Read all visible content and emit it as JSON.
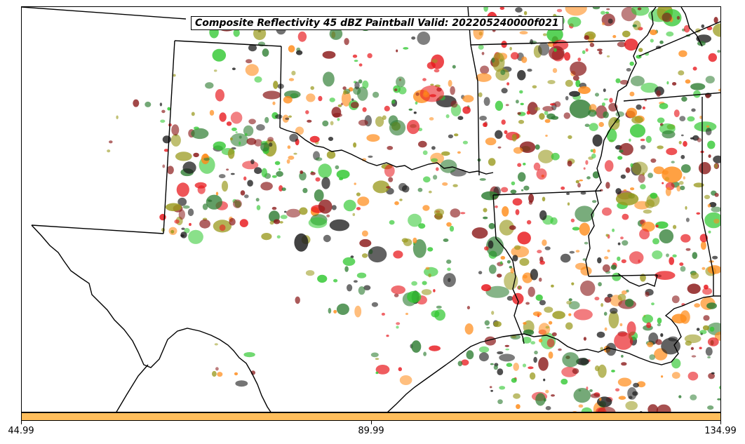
{
  "title": "Composite Reflectivity 45 dBZ Paintball Valid: 202205240000f021",
  "colorbar": {
    "color": "#ffbe5c",
    "ticks": [
      "44.99",
      "89.99",
      "134.99"
    ]
  },
  "members_palette": [
    "#e8191e",
    "#32c832",
    "#8b1a1a",
    "#ff8c1a",
    "#2e7d32",
    "#9a9a1e",
    "#1e1e1e"
  ],
  "boundary_color": "#000000"
}
